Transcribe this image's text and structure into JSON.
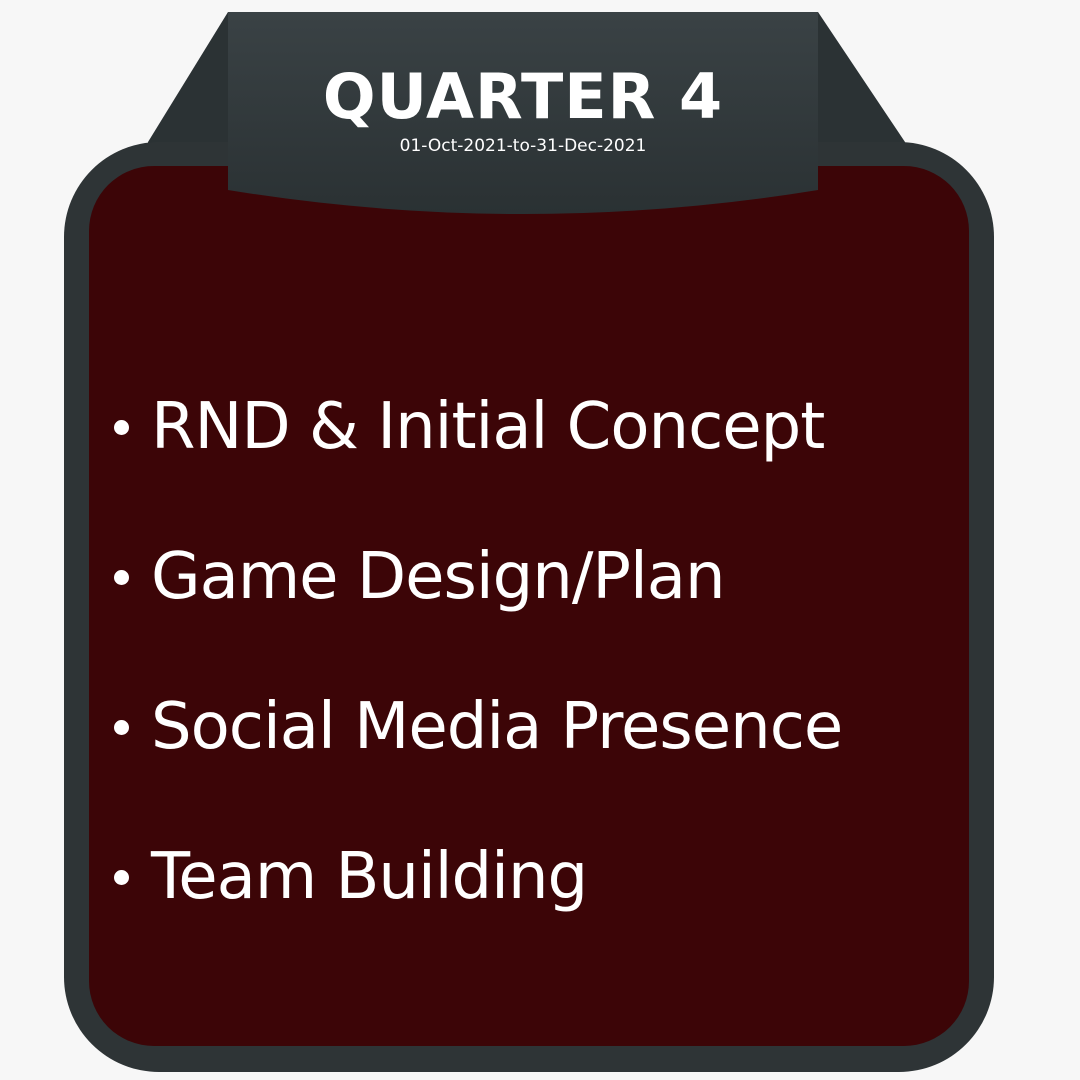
{
  "banner": {
    "title": "QUARTER 4",
    "date_range": "01-Oct-2021-to-31-Dec-2021"
  },
  "items": [
    {
      "label": "RND & Initial Concept"
    },
    {
      "label": "Game Design/Plan"
    },
    {
      "label": "Social Media Presence"
    },
    {
      "label": "Team Building"
    }
  ],
  "colors": {
    "background": "#f7f7f7",
    "frame": "#2e3436",
    "panel": "#3c0507",
    "text": "#ffffff"
  }
}
